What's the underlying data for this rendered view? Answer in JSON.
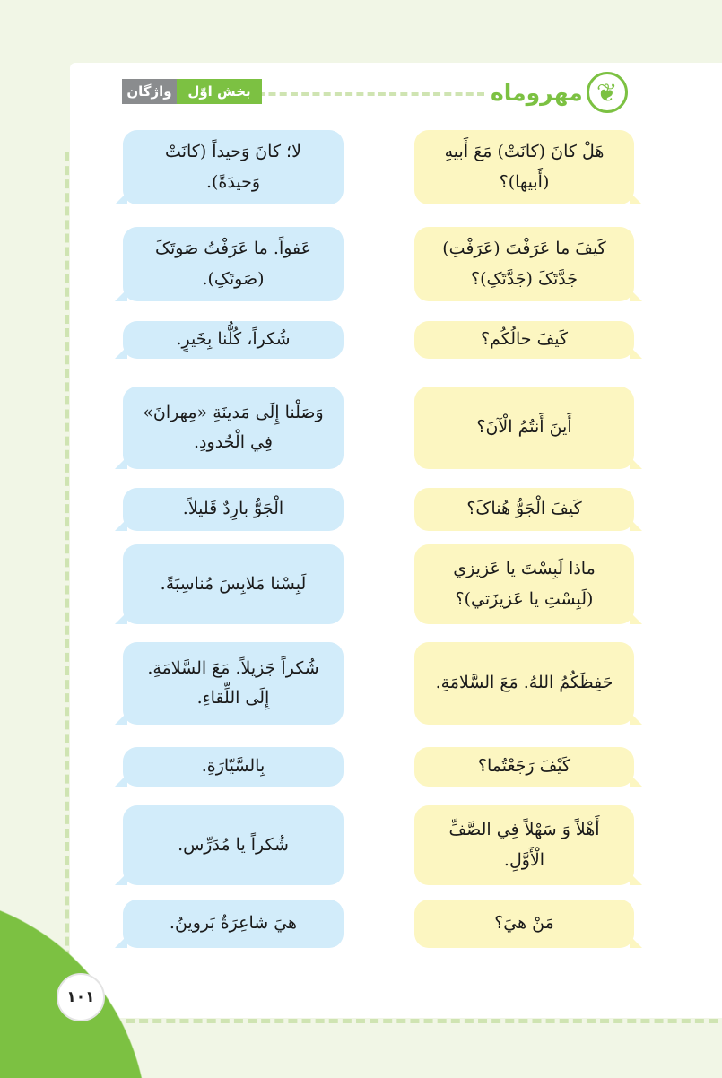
{
  "header": {
    "logo_text": "مهروماه",
    "section_label": "بخش اوّل",
    "chapter_label": "واژگان",
    "logo_icon": "butterfly-icon"
  },
  "colors": {
    "accent_green": "#7cc142",
    "question_bubble": "#fcf6c1",
    "answer_bubble": "#d2ecfa",
    "chapter_tag": "#8a8c8e"
  },
  "dialogues": [
    {
      "question": "هَلْ كانَ (كانَتْ) مَعَ أَبيهِ (أَبيها)؟",
      "answer": "لا؛ كانَ وَحيداً (كانَتْ وَحيدَةً)."
    },
    {
      "question": "كَيفَ ما عَرَفْتَ (عَرَفْتِ) جَدَّتَکَ (جَدَّتَکِ)؟",
      "answer": "عَفواً. ما عَرَفْتُ صَوتَکَ (صَوتَکِ)."
    },
    {
      "question": "كَيفَ حالُكُم؟",
      "answer": "شُكراً، كُلُّنا بِخَيرٍ."
    },
    {
      "question": "أَينَ أَنتُمُ الْآنَ؟",
      "answer": "وَصَلْنا إِلَى مَدينَةِ «مِهرانَ» فِي الْحُدودِ."
    },
    {
      "question": "كَيفَ الْجَوُّ هُناکَ؟",
      "answer": "الْجَوُّ بارِدٌ قَليلاً."
    },
    {
      "question": "ماذا لَبِسْتَ يا عَزيزي (لَبِسْتِ يا عَزيزَتي)؟",
      "answer": "لَبِسْنا مَلابِسَ مُناسِبَةً."
    },
    {
      "question": "حَفِظَكُمُ اللهُ. مَعَ السَّلامَةِ.",
      "answer": "شُكراً جَزيلاً. مَعَ السَّلامَةِ. إِلَى اللِّقاءِ."
    },
    {
      "question": "كَيْفَ رَجَعْتُما؟",
      "answer": "بِالسَّيّارَةِ."
    },
    {
      "question": "أَهْلاً وَ سَهْلاً فِي الصَّفِّ الْأَوَّلِ.",
      "answer": "شُكراً يا مُدَرِّس."
    },
    {
      "question": "مَنْ هيَ؟",
      "answer": "هيَ شاعِرَةٌ بَروينُ."
    }
  ],
  "page_number": "١٠١"
}
